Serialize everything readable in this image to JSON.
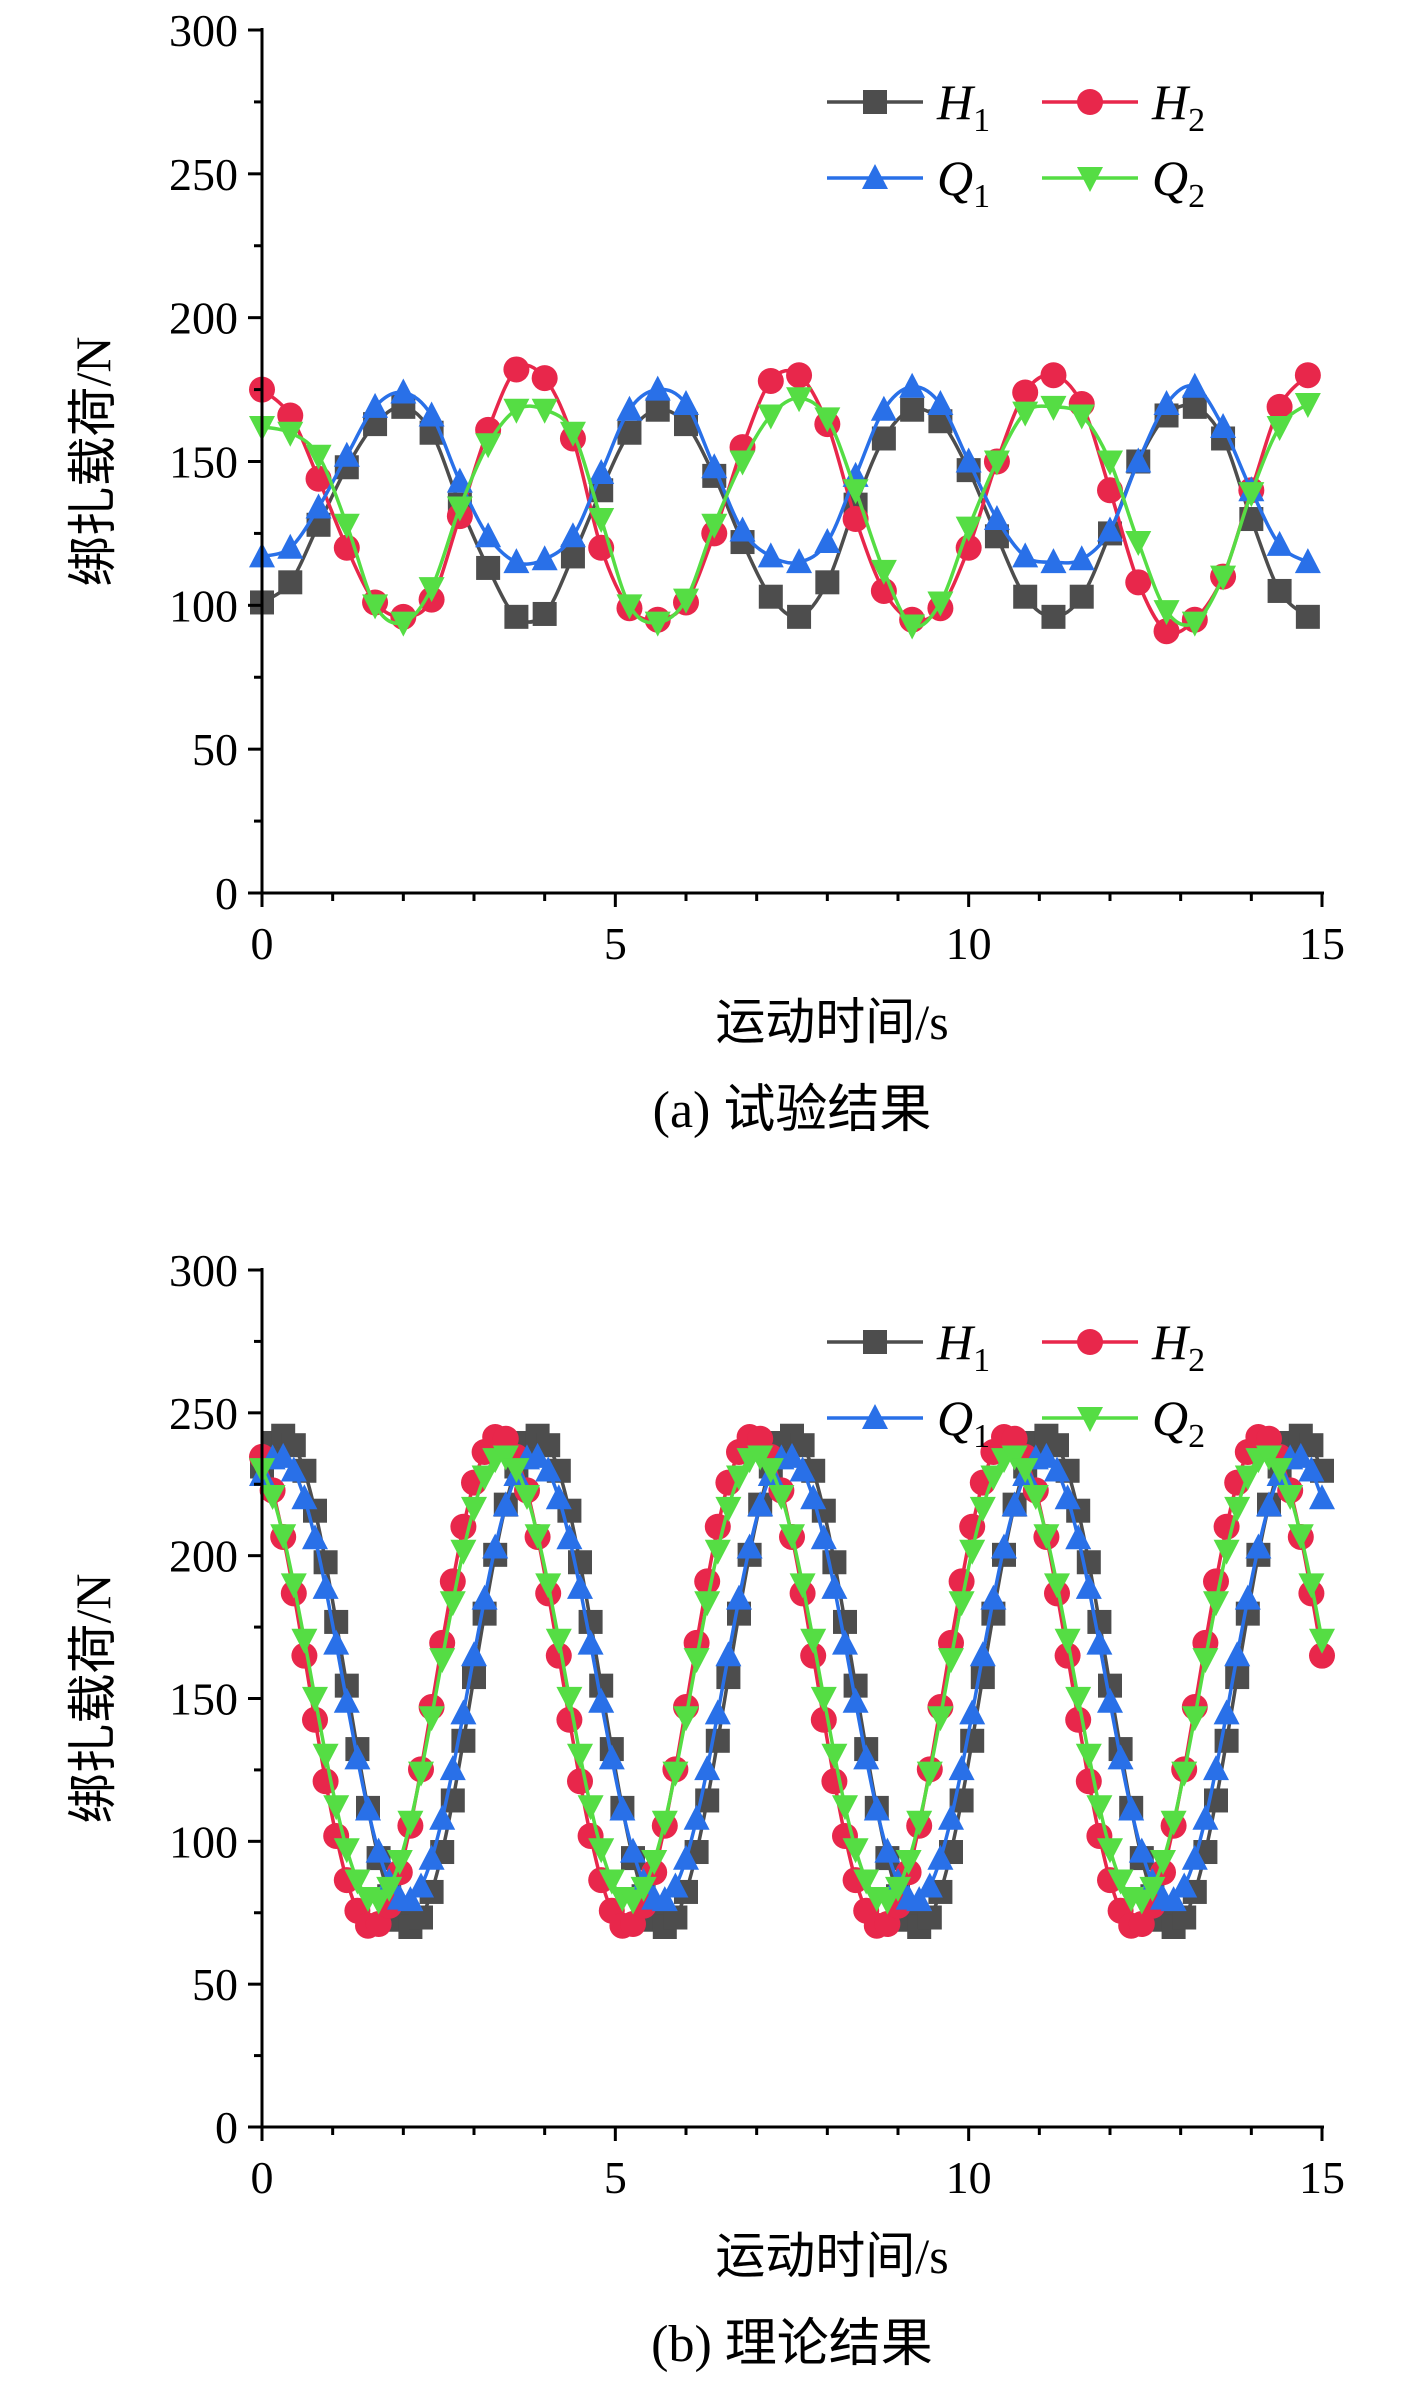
{
  "chart_data": [
    {
      "type": "line",
      "caption": "(a) 试验结果",
      "xlabel": "运动时间/s",
      "ylabel": "绑扎载荷/N",
      "xlim": [
        0,
        15
      ],
      "ylim": [
        0,
        300
      ],
      "xticks": [
        "0",
        "5",
        "10",
        "15"
      ],
      "yticks": [
        "0",
        "50",
        "100",
        "150",
        "200",
        "250",
        "300"
      ],
      "legend_position": "top-right",
      "series": [
        {
          "name": "H",
          "sub": "1",
          "color": "#4d4d4d",
          "marker": "square",
          "x": [
            0,
            0.4,
            0.8,
            1.2,
            1.6,
            2.0,
            2.4,
            2.8,
            3.2,
            3.6,
            4.0,
            4.4,
            4.8,
            5.2,
            5.6,
            6.0,
            6.4,
            6.8,
            7.2,
            7.6,
            8.0,
            8.4,
            8.8,
            9.2,
            9.6,
            10.0,
            10.4,
            10.8,
            11.2,
            11.6,
            12.0,
            12.4,
            12.8,
            13.2,
            13.6,
            14.0,
            14.4,
            14.8
          ],
          "values": [
            101,
            108,
            128,
            148,
            163,
            169,
            160,
            135,
            113,
            96,
            97,
            117,
            140,
            160,
            168,
            163,
            145,
            122,
            103,
            96,
            108,
            135,
            158,
            168,
            164,
            147,
            124,
            103,
            96,
            103,
            125,
            150,
            166,
            169,
            158,
            130,
            105,
            96
          ]
        },
        {
          "name": "H",
          "sub": "2",
          "color": "#e8274b",
          "marker": "circle",
          "x": [
            0,
            0.4,
            0.8,
            1.2,
            1.6,
            2.0,
            2.4,
            2.8,
            3.2,
            3.6,
            4.0,
            4.4,
            4.8,
            5.2,
            5.6,
            6.0,
            6.4,
            6.8,
            7.2,
            7.6,
            8.0,
            8.4,
            8.8,
            9.2,
            9.6,
            10.0,
            10.4,
            10.8,
            11.2,
            11.6,
            12.0,
            12.4,
            12.8,
            13.2,
            13.6,
            14.0,
            14.4,
            14.8
          ],
          "values": [
            175,
            166,
            144,
            120,
            101,
            96,
            102,
            131,
            161,
            182,
            179,
            158,
            120,
            99,
            95,
            101,
            125,
            155,
            178,
            180,
            163,
            130,
            105,
            95,
            99,
            120,
            150,
            174,
            180,
            170,
            140,
            108,
            91,
            95,
            110,
            140,
            169,
            180
          ]
        },
        {
          "name": "Q",
          "sub": "1",
          "color": "#2970e8",
          "marker": "triangle-up",
          "x": [
            0,
            0.4,
            0.8,
            1.2,
            1.6,
            2.0,
            2.4,
            2.8,
            3.2,
            3.6,
            4.0,
            4.4,
            4.8,
            5.2,
            5.6,
            6.0,
            6.4,
            6.8,
            7.2,
            7.6,
            8.0,
            8.4,
            8.8,
            9.2,
            9.6,
            10.0,
            10.4,
            10.8,
            11.2,
            11.6,
            12.0,
            12.4,
            12.8,
            13.2,
            13.6,
            14.0,
            14.4,
            14.8
          ],
          "values": [
            117,
            120,
            134,
            152,
            169,
            174,
            166,
            143,
            124,
            115,
            116,
            124,
            146,
            168,
            175,
            170,
            148,
            126,
            117,
            115,
            122,
            145,
            168,
            176,
            170,
            150,
            130,
            117,
            115,
            116,
            126,
            150,
            170,
            176,
            162,
            140,
            121,
            115
          ]
        },
        {
          "name": "Q",
          "sub": "2",
          "color": "#55dd44",
          "marker": "triangle-down",
          "x": [
            0,
            0.4,
            0.8,
            1.2,
            1.6,
            2.0,
            2.4,
            2.8,
            3.2,
            3.6,
            4.0,
            4.4,
            4.8,
            5.2,
            5.6,
            6.0,
            6.4,
            6.8,
            7.2,
            7.6,
            8.0,
            8.4,
            8.8,
            9.2,
            9.6,
            10.0,
            10.4,
            10.8,
            11.2,
            11.6,
            12.0,
            12.4,
            12.8,
            13.2,
            13.6,
            14.0,
            14.4,
            14.8
          ],
          "values": [
            162,
            160,
            152,
            128,
            100,
            94,
            106,
            134,
            156,
            168,
            168,
            160,
            130,
            100,
            94,
            102,
            128,
            150,
            166,
            172,
            165,
            140,
            112,
            93,
            101,
            127,
            150,
            167,
            169,
            166,
            150,
            122,
            98,
            94,
            110,
            139,
            162,
            170
          ]
        }
      ]
    },
    {
      "type": "line",
      "caption": "(b) 理论结果",
      "xlabel": "运动时间/s",
      "ylabel": "绑扎载荷/N",
      "xlim": [
        0,
        15
      ],
      "ylim": [
        0,
        300
      ],
      "xticks": [
        "0",
        "5",
        "10",
        "15"
      ],
      "yticks": [
        "0",
        "50",
        "100",
        "150",
        "200",
        "250",
        "300"
      ],
      "legend_position": "top-right",
      "series": [
        {
          "name": "H",
          "sub": "1",
          "color": "#4d4d4d",
          "marker": "square",
          "model": {
            "mean": 156,
            "amplitude": 86,
            "period": 3.6,
            "phase": 0.29
          }
        },
        {
          "name": "H",
          "sub": "2",
          "color": "#e8274b",
          "marker": "circle",
          "model": {
            "mean": 156,
            "amplitude": 86,
            "period": 3.6,
            "phase": -0.24
          }
        },
        {
          "name": "Q",
          "sub": "1",
          "color": "#2970e8",
          "marker": "triangle-up",
          "model": {
            "mean": 157,
            "amplitude": 78,
            "period": 3.6,
            "phase": 0.24
          }
        },
        {
          "name": "Q",
          "sub": "2",
          "color": "#55dd44",
          "marker": "triangle-down",
          "model": {
            "mean": 157,
            "amplitude": 78,
            "period": 3.6,
            "phase": -0.2
          }
        }
      ]
    }
  ]
}
